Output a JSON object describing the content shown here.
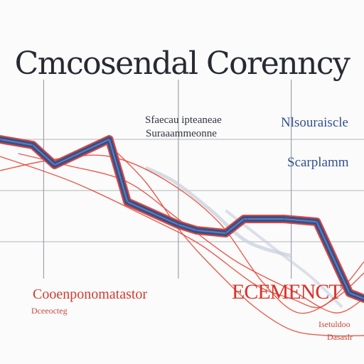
{
  "chart_data": {
    "type": "line",
    "title": "Cmcosendal Corenncy",
    "annotations": {
      "top_note_line1": "Sfaecau ipteaneae",
      "top_note_line2": "Suraaammeonne",
      "right_note_line1": "Nlsouraiscle",
      "right_note_line2": "Scarplamm",
      "bottom_left_line1": "Cooenponomatastor",
      "bottom_left_line2": "Dceeocteg",
      "bottom_center": "ECEMENCT",
      "bottom_right_line1": "Isetuldoo",
      "bottom_right_line2": "Dasaslr"
    },
    "x_range": [
      0,
      100
    ],
    "y_range": [
      0,
      100
    ],
    "grid": true,
    "colors": {
      "main_series": "#34508e",
      "main_outline": "#e1453b",
      "thin_series": "#e8402f",
      "grid": "#9fa3a8",
      "shadow": "#c6cedc"
    },
    "series": [
      {
        "role": "main",
        "x": [
          0,
          9,
          15,
          30,
          35,
          49,
          54,
          62,
          67,
          68,
          78,
          87,
          96,
          100
        ],
        "y": [
          71,
          69,
          62,
          71,
          49,
          41,
          39,
          38,
          43,
          43,
          43,
          42,
          17,
          15
        ]
      },
      {
        "role": "thin",
        "x": [
          0,
          15,
          30,
          45,
          60,
          72,
          82,
          92,
          100
        ],
        "y": [
          60,
          64,
          65,
          57,
          42,
          21,
          10,
          15,
          24
        ]
      },
      {
        "role": "thin",
        "x": [
          0,
          20,
          40,
          55,
          70,
          80,
          88,
          95,
          100
        ],
        "y": [
          65,
          56,
          44,
          34,
          20,
          15,
          12,
          20,
          28
        ]
      },
      {
        "role": "thin",
        "x": [
          5,
          18,
          35,
          50,
          65,
          80,
          92,
          100
        ],
        "y": [
          66,
          62,
          56,
          42,
          28,
          18,
          10,
          15
        ]
      },
      {
        "role": "thin",
        "x": [
          30,
          40,
          50,
          60,
          70,
          80,
          90,
          100
        ],
        "y": [
          69,
          56,
          38,
          24,
          12,
          4,
          2,
          2
        ]
      }
    ]
  }
}
